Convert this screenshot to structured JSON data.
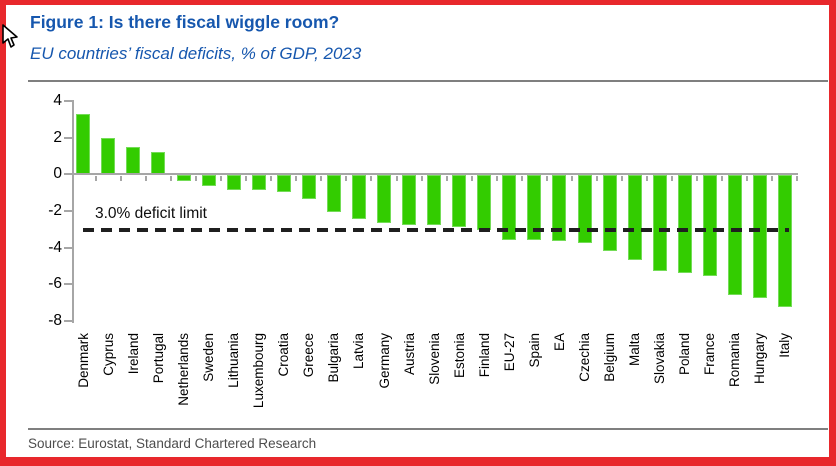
{
  "figure": {
    "title": "Figure 1: Is there fiscal wiggle room?",
    "subtitle": "EU countries’ fiscal deficits, % of GDP, 2023"
  },
  "chart_data": {
    "type": "bar",
    "title": "Figure 1: Is there fiscal wiggle room?",
    "subtitle": "EU countries’ fiscal deficits, % of GDP, 2023",
    "categories": [
      "Denmark",
      "Cyprus",
      "Ireland",
      "Portugal",
      "Netherlands",
      "Sweden",
      "Lithuania",
      "Luxembourg",
      "Croatia",
      "Greece",
      "Bulgaria",
      "Latvia",
      "Germany",
      "Austria",
      "Slovenia",
      "Estonia",
      "Finland",
      "EU-27",
      "Spain",
      "EA",
      "Czechia",
      "Belgium",
      "Malta",
      "Slovakia",
      "Poland",
      "France",
      "Romania",
      "Hungary",
      "Italy"
    ],
    "values": [
      3.3,
      2.0,
      1.5,
      1.2,
      -0.3,
      -0.6,
      -0.8,
      -0.8,
      -0.9,
      -1.3,
      -2.0,
      -2.4,
      -2.6,
      -2.7,
      -2.7,
      -2.8,
      -3.0,
      -3.5,
      -3.5,
      -3.6,
      -3.7,
      -4.1,
      -4.6,
      -5.2,
      -5.3,
      -5.5,
      -6.5,
      -6.7,
      -7.2
    ],
    "ylabel": "",
    "xlabel": "",
    "ylim": [
      -8,
      4
    ],
    "yticks": [
      4,
      2,
      0,
      -2,
      -4,
      -6,
      -8
    ],
    "grid": "off",
    "legend": "none",
    "reference_line": {
      "value": -3.0,
      "label": "3.0% deficit limit",
      "style": "dashed"
    }
  },
  "colors": {
    "bar_green": "#33cc00",
    "accent_blue": "#1657ae",
    "frame_red": "#e8282c",
    "axis_gray": "#a6a6a6",
    "dash_black": "#1f1f1f"
  },
  "source": {
    "text": "Source: Eurostat, Standard Chartered Research"
  }
}
